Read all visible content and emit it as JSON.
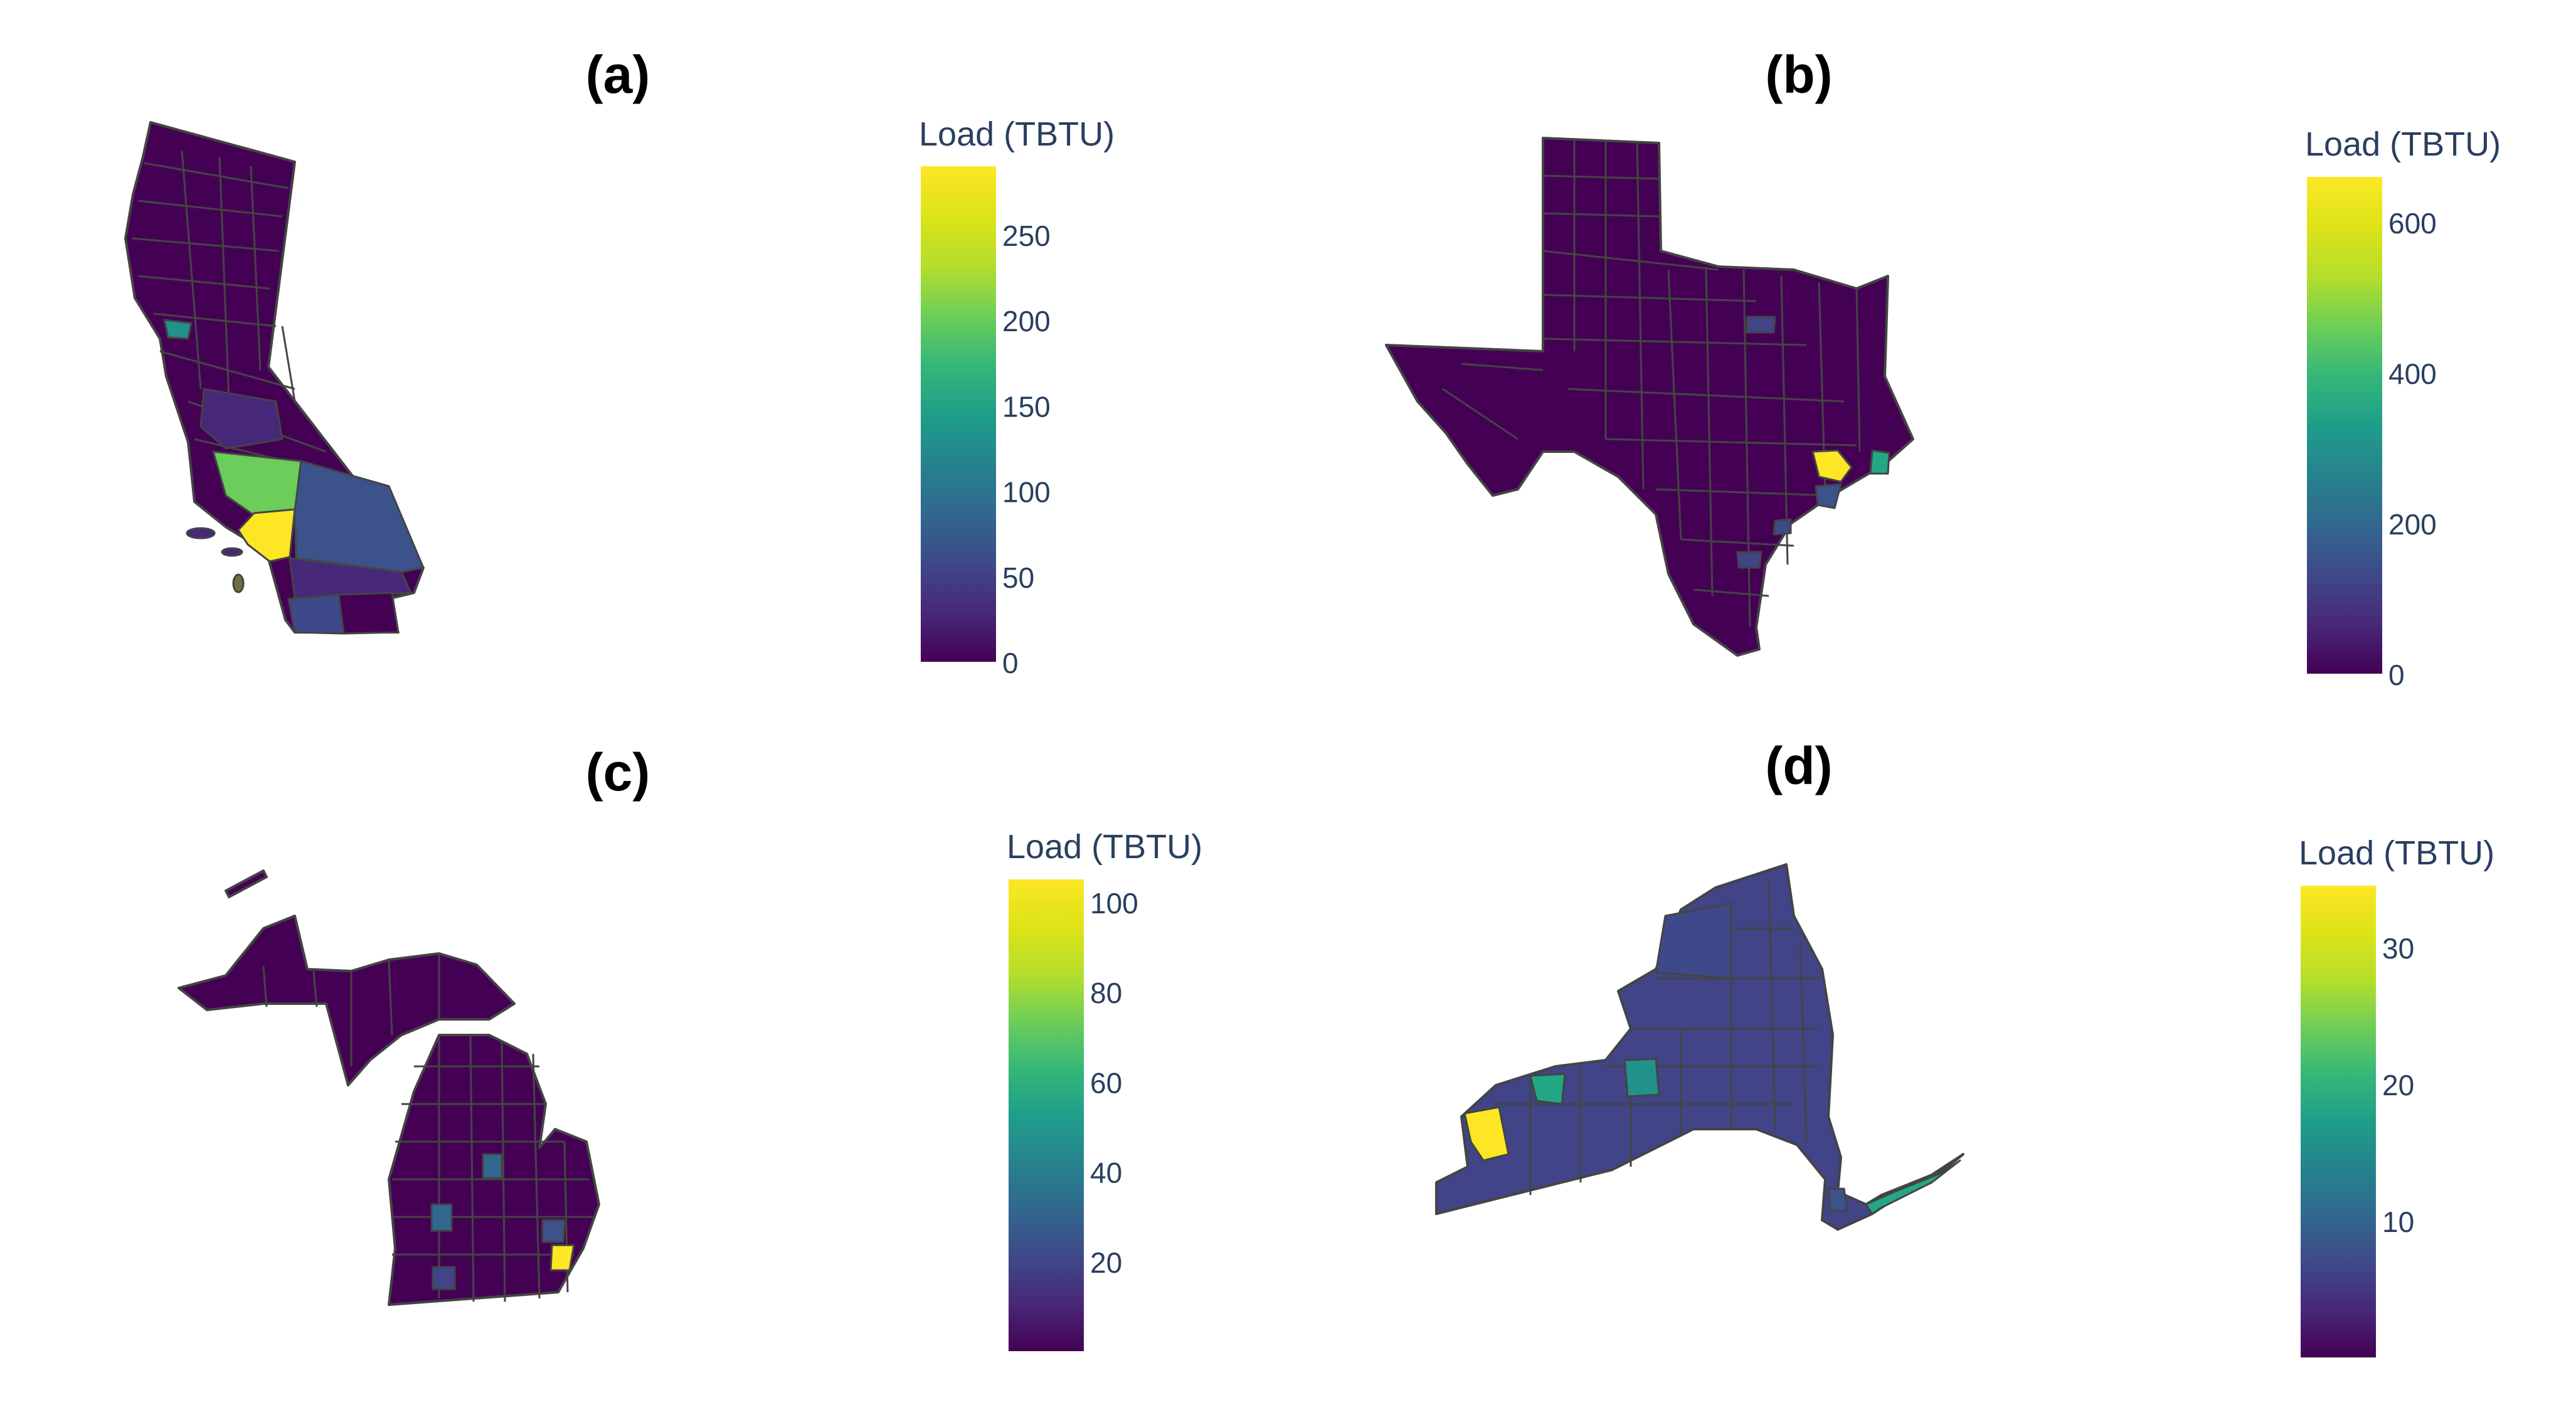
{
  "panels": [
    {
      "label": "(a)",
      "colorbar": {
        "title": "Load (TBTU)",
        "ticks": [
          "0",
          "50",
          "100",
          "150",
          "200",
          "250"
        ],
        "min": 0,
        "max": 290
      },
      "highlights": [
        {
          "value": 285,
          "color": "#fde725"
        },
        {
          "value": 220,
          "color": "#6ccd5a"
        },
        {
          "value": 95,
          "color": "#3b528b"
        },
        {
          "value": 140,
          "color": "#21918c"
        },
        {
          "value": 60,
          "color": "#414487"
        },
        {
          "value": 40,
          "color": "#482878"
        }
      ]
    },
    {
      "label": "(b)",
      "colorbar": {
        "title": "Load (TBTU)",
        "ticks": [
          "0",
          "200",
          "400",
          "600"
        ],
        "min": 0,
        "max": 660
      },
      "highlights": [
        {
          "value": 650,
          "color": "#fde725"
        },
        {
          "value": 380,
          "color": "#22a884"
        },
        {
          "value": 180,
          "color": "#3b528b"
        },
        {
          "value": 90,
          "color": "#414487"
        }
      ]
    },
    {
      "label": "(c)",
      "colorbar": {
        "title": "Load (TBTU)",
        "ticks": [
          "20",
          "40",
          "60",
          "80",
          "100"
        ],
        "min": 0,
        "max": 105
      },
      "highlights": [
        {
          "value": 104,
          "color": "#fde725"
        },
        {
          "value": 35,
          "color": "#31688e"
        },
        {
          "value": 25,
          "color": "#3b528b"
        },
        {
          "value": 15,
          "color": "#414487"
        }
      ]
    },
    {
      "label": "(d)",
      "colorbar": {
        "title": "Load (TBTU)",
        "ticks": [
          "10",
          "20",
          "30"
        ],
        "min": 0,
        "max": 34.5
      },
      "highlights": [
        {
          "value": 34,
          "color": "#fde725"
        },
        {
          "value": 20,
          "color": "#22a884"
        },
        {
          "value": 18,
          "color": "#21918c"
        },
        {
          "value": 10,
          "color": "#3b528b"
        },
        {
          "value": 6,
          "color": "#414487"
        }
      ]
    }
  ],
  "colors": {
    "low": "#440154",
    "high": "#fde725"
  }
}
